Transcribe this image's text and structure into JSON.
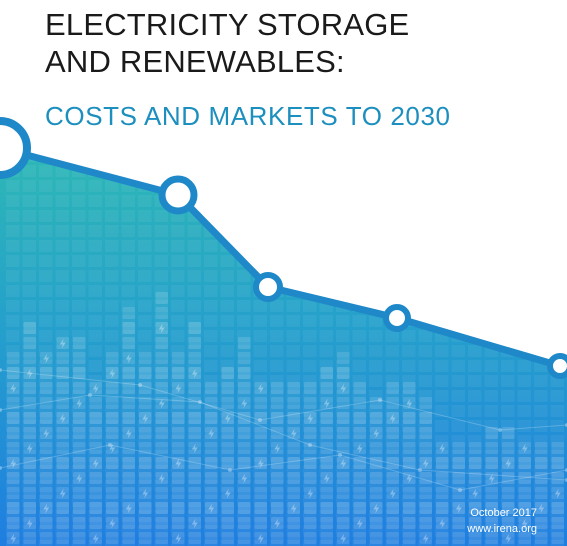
{
  "cover": {
    "title_line1": "ELECTRICITY STORAGE",
    "title_line2": "AND RENEWABLES:",
    "subtitle": "COSTS AND MARKETS TO 2030",
    "date": "October 2017",
    "url": "www.irena.org"
  },
  "colors": {
    "title": "#1a1a1a",
    "subtitle": "#1d8fbf",
    "area_top": "#2bb5b8",
    "area_bottom": "#1f7fd9",
    "line": "#1e88c9",
    "marker_fill": "#ffffff"
  },
  "icons": [
    "battery-icon",
    "lightning-bolt-icon"
  ]
}
